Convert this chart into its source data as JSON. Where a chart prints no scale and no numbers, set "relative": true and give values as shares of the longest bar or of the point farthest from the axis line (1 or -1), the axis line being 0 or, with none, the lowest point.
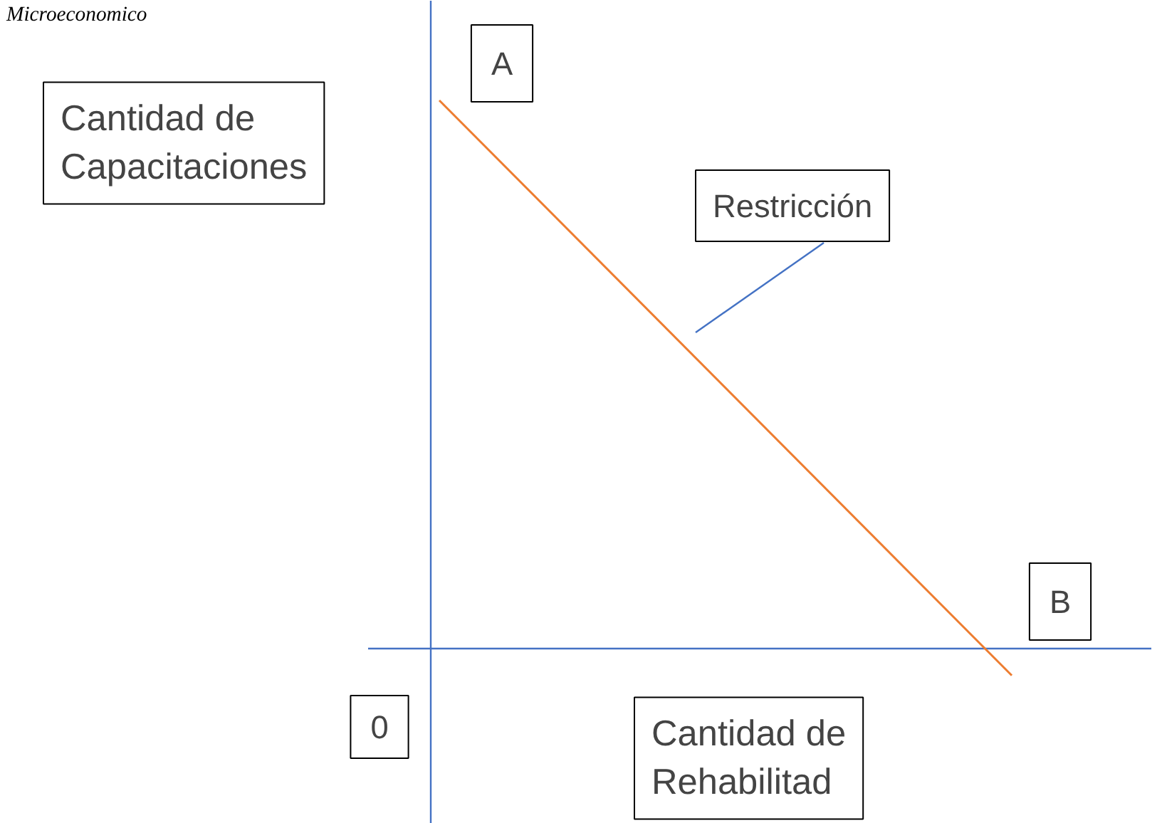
{
  "chart_data": {
    "type": "line",
    "title": "Microeconomico",
    "xlabel": "Cantidad de Rehabilitad",
    "ylabel": "Cantidad de Capacitaciones",
    "relative": true,
    "categories": [
      null,
      null
    ],
    "series": [
      {
        "color": "#ed7d31",
        "values": [
          1,
          -0.049
        ]
      }
    ],
    "annotations": [
      "A",
      "B",
      "0",
      "Restricción"
    ],
    "ref_lines": [
      {
        "axis": "y",
        "value": 0,
        "color": "#4472c4"
      }
    ],
    "marker": "none",
    "line_style": "solid",
    "grid": false
  }
}
